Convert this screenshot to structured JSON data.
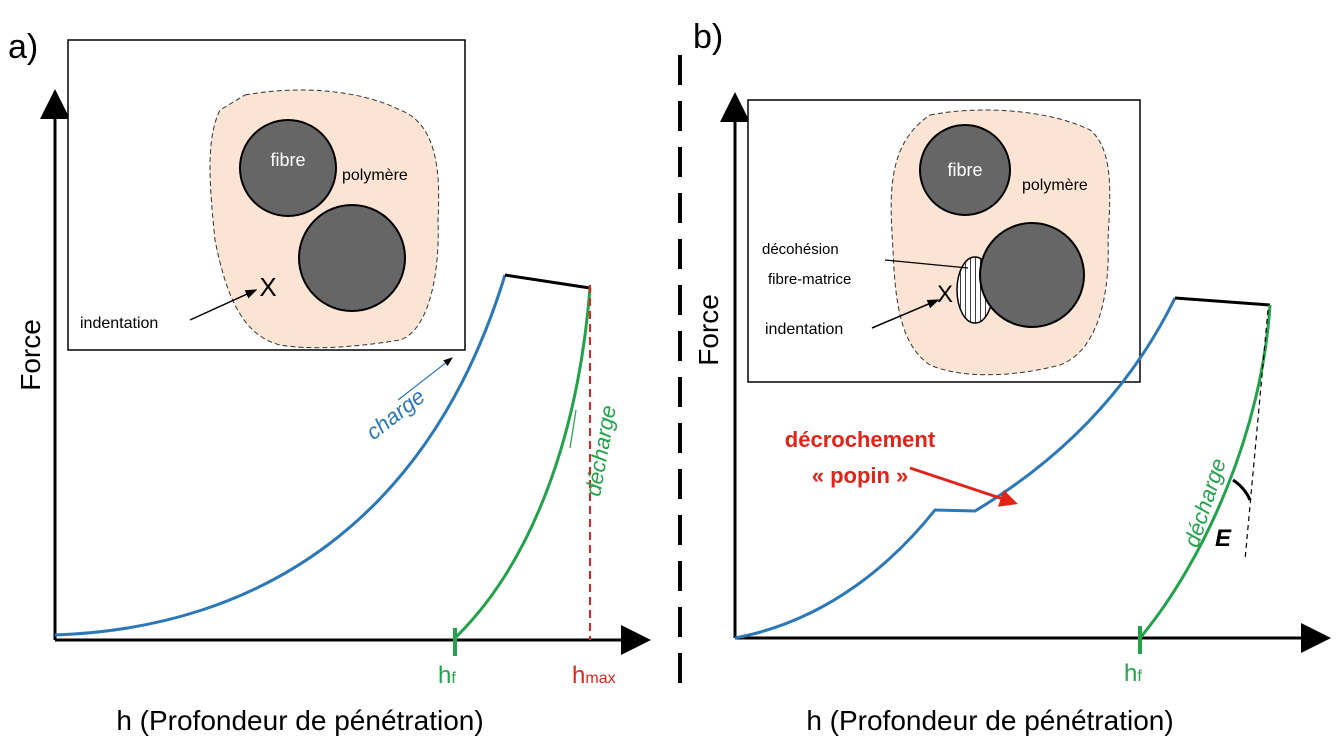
{
  "panels": [
    {
      "label": "a)",
      "y_axis": "Force",
      "x_axis": "h (Profondeur de pénétration)",
      "inset": {
        "fibre": "fibre",
        "matrix": "polymère",
        "indentation": "indentation"
      },
      "curves": {
        "loading": "charge",
        "unloading": "décharge"
      },
      "markers": [
        {
          "symbol": "h",
          "subscript": "f"
        },
        {
          "symbol": "h",
          "subscript": "max"
        }
      ]
    },
    {
      "label": "b)",
      "y_axis": "Force",
      "x_axis": "h (Profondeur de pénétration)",
      "inset": {
        "fibre": "fibre",
        "matrix": "polymère",
        "debonding": [
          "décohésion",
          "fibre-matrice"
        ],
        "indentation": "indentation"
      },
      "popin": [
        "décrochement",
        "« popin »"
      ],
      "curves": {
        "unloading": "décharge"
      },
      "modulus": "E",
      "markers": [
        {
          "symbol": "h",
          "subscript": "f"
        }
      ]
    }
  ]
}
